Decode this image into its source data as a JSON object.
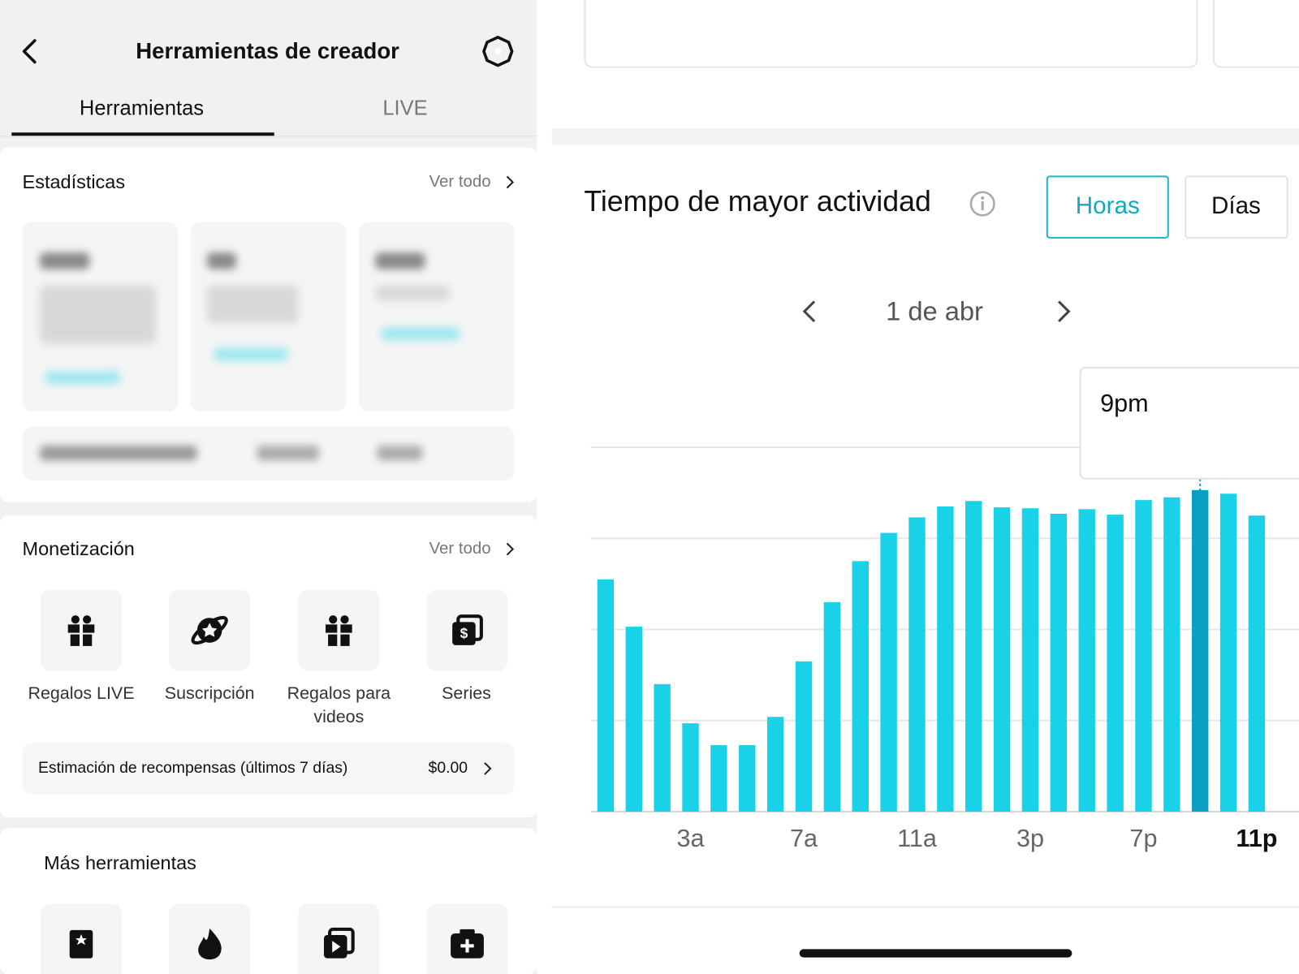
{
  "header": {
    "title": "Herramientas de creador"
  },
  "tabs": [
    "Herramientas",
    "LIVE"
  ],
  "stats": {
    "title": "Estadísticas",
    "link": "Ver todo"
  },
  "monetization": {
    "title": "Monetización",
    "link": "Ver todo",
    "items": [
      "Regalos LIVE",
      "Suscripción",
      "Regalos para videos",
      "Series"
    ],
    "rewards": {
      "label": "Estimación de recompensas (últimos 7 días)",
      "value": "$0.00"
    }
  },
  "more_tools": {
    "title": "Más herramientas"
  },
  "chart_data": {
    "type": "bar",
    "title": "Tiempo de mayor actividad",
    "toggle": [
      "Horas",
      "Días"
    ],
    "date": "1 de abr",
    "tooltip": "9pm",
    "categories": [
      null,
      null,
      null,
      "3a",
      null,
      null,
      null,
      "7a",
      null,
      null,
      null,
      "11a",
      null,
      null,
      null,
      "3p",
      null,
      null,
      null,
      "7p",
      null,
      null,
      null,
      "11p"
    ],
    "values": [
      2.55,
      2.03,
      1.4,
      0.97,
      0.73,
      0.73,
      1.04,
      1.65,
      2.3,
      2.75,
      3.06,
      3.23,
      3.35,
      3.41,
      3.34,
      3.33,
      3.27,
      3.32,
      3.26,
      3.42,
      3.45,
      3.53,
      3.49,
      3.25
    ],
    "color": "#1ad2e8",
    "highlight_index": 21,
    "highlight_color": "#0aa0c2",
    "ylim": [
      0,
      4
    ],
    "yticks": [
      0,
      1,
      2,
      3,
      4
    ],
    "grid": true
  }
}
